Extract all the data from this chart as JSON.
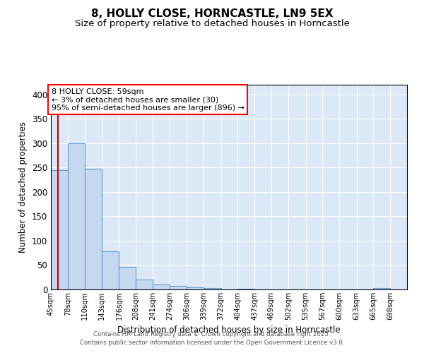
{
  "title_line1": "8, HOLLY CLOSE, HORNCASTLE, LN9 5EX",
  "title_line2": "Size of property relative to detached houses in Horncastle",
  "xlabel": "Distribution of detached houses by size in Horncastle",
  "ylabel": "Number of detached properties",
  "bar_color": "#c5d8f0",
  "bar_edge_color": "#6699cc",
  "background_color": "#dce8f5",
  "grid_color": "#ffffff",
  "annotation_text": "8 HOLLY CLOSE: 59sqm\n← 3% of detached houses are smaller (30)\n95% of semi-detached houses are larger (896) →",
  "vline_color": "#cc0000",
  "vline_x": 59,
  "categories": [
    "45sqm",
    "78sqm",
    "110sqm",
    "143sqm",
    "176sqm",
    "208sqm",
    "241sqm",
    "274sqm",
    "306sqm",
    "339sqm",
    "372sqm",
    "404sqm",
    "437sqm",
    "469sqm",
    "502sqm",
    "535sqm",
    "567sqm",
    "600sqm",
    "633sqm",
    "665sqm",
    "698sqm"
  ],
  "bin_edges": [
    45,
    78,
    110,
    143,
    176,
    208,
    241,
    274,
    306,
    339,
    372,
    404,
    437,
    469,
    502,
    535,
    567,
    600,
    633,
    665,
    698,
    730
  ],
  "values": [
    245,
    300,
    248,
    78,
    46,
    21,
    10,
    7,
    5,
    3,
    0,
    2,
    0,
    0,
    0,
    0,
    0,
    0,
    0,
    3,
    0
  ],
  "ylim": [
    0,
    420
  ],
  "yticks": [
    0,
    50,
    100,
    150,
    200,
    250,
    300,
    350,
    400
  ],
  "footer_line1": "Contains HM Land Registry data © Crown copyright and database right 2025.",
  "footer_line2": "Contains public sector information licensed under the Open Government Licence v3.0."
}
